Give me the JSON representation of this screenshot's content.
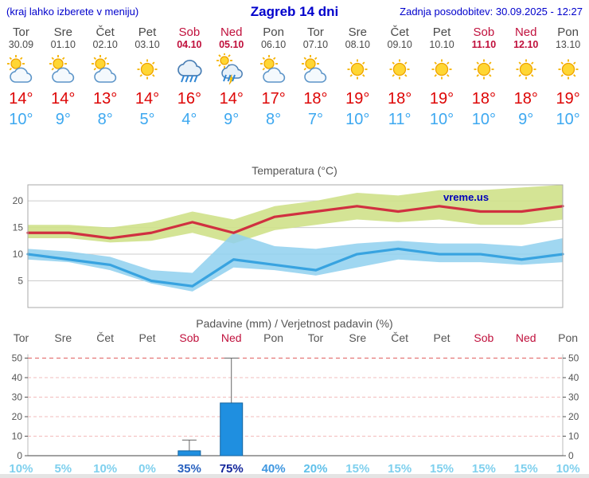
{
  "header": {
    "left_note": "(kraj lahko izberete v meniju)",
    "title": "Zagreb 14 dni",
    "updated": "Zadnja posodobitev: 30.09.2025 - 12:27"
  },
  "days": [
    {
      "name": "Tor",
      "date": "30.09",
      "weekend": false,
      "icon": "partly-cloudy",
      "tmax": "14°",
      "tmin": "10°"
    },
    {
      "name": "Sre",
      "date": "01.10",
      "weekend": false,
      "icon": "partly-cloudy",
      "tmax": "14°",
      "tmin": "9°"
    },
    {
      "name": "Čet",
      "date": "02.10",
      "weekend": false,
      "icon": "partly-cloudy",
      "tmax": "13°",
      "tmin": "8°"
    },
    {
      "name": "Pet",
      "date": "03.10",
      "weekend": false,
      "icon": "sunny",
      "tmax": "14°",
      "tmin": "5°"
    },
    {
      "name": "Sob",
      "date": "04.10",
      "weekend": true,
      "icon": "rain",
      "tmax": "16°",
      "tmin": "4°"
    },
    {
      "name": "Ned",
      "date": "05.10",
      "weekend": true,
      "icon": "rain-sun",
      "tmax": "14°",
      "tmin": "9°"
    },
    {
      "name": "Pon",
      "date": "06.10",
      "weekend": false,
      "icon": "partly-cloudy",
      "tmax": "17°",
      "tmin": "8°"
    },
    {
      "name": "Tor",
      "date": "07.10",
      "weekend": false,
      "icon": "partly-cloudy",
      "tmax": "18°",
      "tmin": "7°"
    },
    {
      "name": "Sre",
      "date": "08.10",
      "weekend": false,
      "icon": "sunny",
      "tmax": "19°",
      "tmin": "10°"
    },
    {
      "name": "Čet",
      "date": "09.10",
      "weekend": false,
      "icon": "sunny",
      "tmax": "18°",
      "tmin": "11°"
    },
    {
      "name": "Pet",
      "date": "10.10",
      "weekend": false,
      "icon": "sunny",
      "tmax": "19°",
      "tmin": "10°"
    },
    {
      "name": "Sob",
      "date": "11.10",
      "weekend": true,
      "icon": "sunny",
      "tmax": "18°",
      "tmin": "10°"
    },
    {
      "name": "Ned",
      "date": "12.10",
      "weekend": true,
      "icon": "sunny",
      "tmax": "18°",
      "tmin": "9°"
    },
    {
      "name": "Pon",
      "date": "13.10",
      "weekend": false,
      "icon": "sunny",
      "tmax": "19°",
      "tmin": "10°"
    }
  ],
  "chart_data": [
    {
      "type": "line",
      "title": "Temperatura (°C)",
      "watermark": "vreme.us",
      "x": [
        "30.09",
        "01.10",
        "02.10",
        "03.10",
        "04.10",
        "05.10",
        "06.10",
        "07.10",
        "08.10",
        "09.10",
        "10.10",
        "11.10",
        "12.10",
        "13.10"
      ],
      "ylim": [
        0,
        23
      ],
      "yticks": [
        5,
        10,
        15,
        20
      ],
      "grid": true,
      "legend_position": "none",
      "series": [
        {
          "name": "max temperatura",
          "color": "#d03040",
          "values": [
            14,
            14,
            13,
            14,
            16,
            14,
            17,
            18,
            19,
            18,
            19,
            18,
            18,
            19
          ]
        },
        {
          "name": "min temperatura",
          "color": "#38a3e0",
          "values": [
            10,
            9,
            8,
            5,
            4,
            9,
            8,
            7,
            10,
            11,
            10,
            10,
            9,
            10
          ]
        }
      ],
      "bands": [
        {
          "name": "max-range",
          "color": "#cfe18a",
          "opacity": 0.9,
          "upper": [
            15.5,
            15.5,
            15,
            16,
            18,
            16.5,
            19,
            20,
            21.5,
            21,
            22,
            22,
            22.5,
            23
          ],
          "lower": [
            13,
            13,
            12.2,
            12.5,
            14,
            12,
            14.5,
            15.5,
            16.5,
            16,
            16.5,
            15.5,
            15.5,
            16.5
          ]
        },
        {
          "name": "min-range",
          "color": "#8fd0ef",
          "opacity": 0.85,
          "upper": [
            11,
            10.5,
            9.5,
            7,
            6.5,
            14,
            11.5,
            11,
            12,
            12.5,
            12,
            12,
            11.5,
            13
          ],
          "lower": [
            9,
            8.5,
            7,
            4.5,
            3,
            7.5,
            7,
            6,
            7.5,
            9,
            8.5,
            8.5,
            8,
            8.5
          ]
        }
      ]
    },
    {
      "type": "bar",
      "title": "Padavine (mm) / Verjetnost padavin (%)",
      "day_labels": [
        "Tor",
        "Sre",
        "Čet",
        "Pet",
        "Sob",
        "Ned",
        "Pon",
        "Tor",
        "Sre",
        "Čet",
        "Pet",
        "Sob",
        "Ned",
        "Pon"
      ],
      "weekend": [
        false,
        false,
        false,
        false,
        true,
        true,
        false,
        false,
        false,
        false,
        false,
        true,
        true,
        false
      ],
      "ylim": [
        0,
        52
      ],
      "yticks": [
        0,
        10,
        20,
        30,
        40,
        50
      ],
      "values": [
        0,
        0,
        0,
        0,
        2.5,
        27,
        0,
        0,
        0,
        0,
        0,
        0,
        0,
        0
      ],
      "whisker_max": [
        0,
        0,
        0,
        0,
        8,
        50,
        0,
        0,
        0,
        0,
        0,
        0,
        0,
        0
      ],
      "bar_color": "#1f8fe0",
      "bar_border_color": "#14639f",
      "probabilities": [
        "10%",
        "5%",
        "10%",
        "0%",
        "35%",
        "75%",
        "40%",
        "20%",
        "15%",
        "15%",
        "15%",
        "15%",
        "15%",
        "10%"
      ],
      "prob_colors": [
        "#7fd0ee",
        "#7fd0ee",
        "#7fd0ee",
        "#7fd0ee",
        "#2a63c0",
        "#15279c",
        "#3f97e0",
        "#5fc0ea",
        "#7fd0ee",
        "#7fd0ee",
        "#7fd0ee",
        "#7fd0ee",
        "#7fd0ee",
        "#7fd0ee"
      ]
    }
  ]
}
